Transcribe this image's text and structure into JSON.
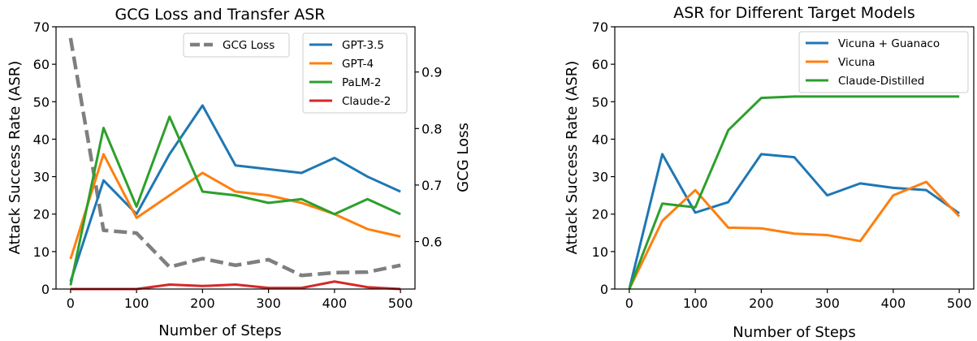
{
  "chart_data": [
    {
      "type": "line",
      "title": "GCG Loss and Transfer ASR",
      "xlabel": "Number of Steps",
      "ylabel": "Attack Success Rate (ASR)",
      "y2label": "GCG Loss",
      "xlim": [
        -22,
        522
      ],
      "ylim": [
        0,
        70
      ],
      "y2lim": [
        0.516,
        0.98
      ],
      "xticks": [
        0,
        100,
        200,
        300,
        400,
        500
      ],
      "yticks": [
        0,
        10,
        20,
        30,
        40,
        50,
        60,
        70
      ],
      "y2ticks": [
        0.6,
        0.7,
        0.8,
        0.9
      ],
      "x": [
        0,
        50,
        100,
        150,
        200,
        250,
        300,
        350,
        400,
        450,
        500
      ],
      "series": [
        {
          "name": "GPT-3.5",
          "color": "#1f77b4",
          "axis": "left",
          "values": [
            2,
            29,
            20,
            36,
            49,
            33,
            32,
            31,
            35,
            30,
            26
          ]
        },
        {
          "name": "GPT-4",
          "color": "#ff7f0e",
          "axis": "left",
          "values": [
            8,
            36,
            19,
            25,
            31,
            26,
            25,
            23,
            20,
            16,
            14
          ]
        },
        {
          "name": "PaLM-2",
          "color": "#2ca02c",
          "axis": "left",
          "values": [
            1,
            43,
            22,
            46,
            26,
            25,
            23,
            24,
            20,
            24,
            20
          ]
        },
        {
          "name": "Claude-2",
          "color": "#d62728",
          "axis": "left",
          "values": [
            0,
            0,
            0,
            1.2,
            0.8,
            1.2,
            0.3,
            0.3,
            2,
            0.5,
            0
          ]
        }
      ],
      "secondary_series": [
        {
          "name": "GCG Loss",
          "color": "#7f7f7f",
          "axis": "right",
          "dashed": true,
          "values": [
            0.96,
            0.62,
            0.615,
            0.555,
            0.57,
            0.558,
            0.568,
            0.54,
            0.545,
            0.546,
            0.558
          ]
        }
      ],
      "legend": [
        {
          "placement": "top-center",
          "entries": [
            "GCG Loss"
          ]
        },
        {
          "placement": "top-right",
          "entries": [
            "GPT-3.5",
            "GPT-4",
            "PaLM-2",
            "Claude-2"
          ]
        }
      ]
    },
    {
      "type": "line",
      "title": "ASR for Different Target Models",
      "xlabel": "Number of Steps",
      "ylabel": "Attack Success Rate (ASR)",
      "xlim": [
        -22,
        522
      ],
      "ylim": [
        0,
        70
      ],
      "xticks": [
        0,
        100,
        200,
        300,
        400,
        500
      ],
      "yticks": [
        0,
        10,
        20,
        30,
        40,
        50,
        60,
        70
      ],
      "x": [
        0,
        50,
        100,
        150,
        200,
        250,
        300,
        350,
        400,
        450,
        500
      ],
      "series": [
        {
          "name": "Vicuna + Guanaco",
          "color": "#1f77b4",
          "values": [
            0,
            36,
            20.4,
            23.2,
            36,
            35.2,
            25,
            28.2,
            27,
            26.4,
            20.2
          ]
        },
        {
          "name": "Vicuna",
          "color": "#ff7f0e",
          "values": [
            0,
            18.2,
            26.4,
            16.4,
            16.2,
            14.8,
            14.4,
            12.8,
            25,
            28.6,
            19.4
          ]
        },
        {
          "name": "Claude-Distilled",
          "color": "#2ca02c",
          "values": [
            0,
            22.8,
            21.8,
            42.4,
            51,
            51.4,
            51.4,
            51.4,
            51.4,
            51.4,
            51.4
          ]
        }
      ],
      "legend": [
        {
          "placement": "top-right",
          "entries": [
            "Vicuna + Guanaco",
            "Vicuna",
            "Claude-Distilled"
          ]
        }
      ]
    }
  ]
}
